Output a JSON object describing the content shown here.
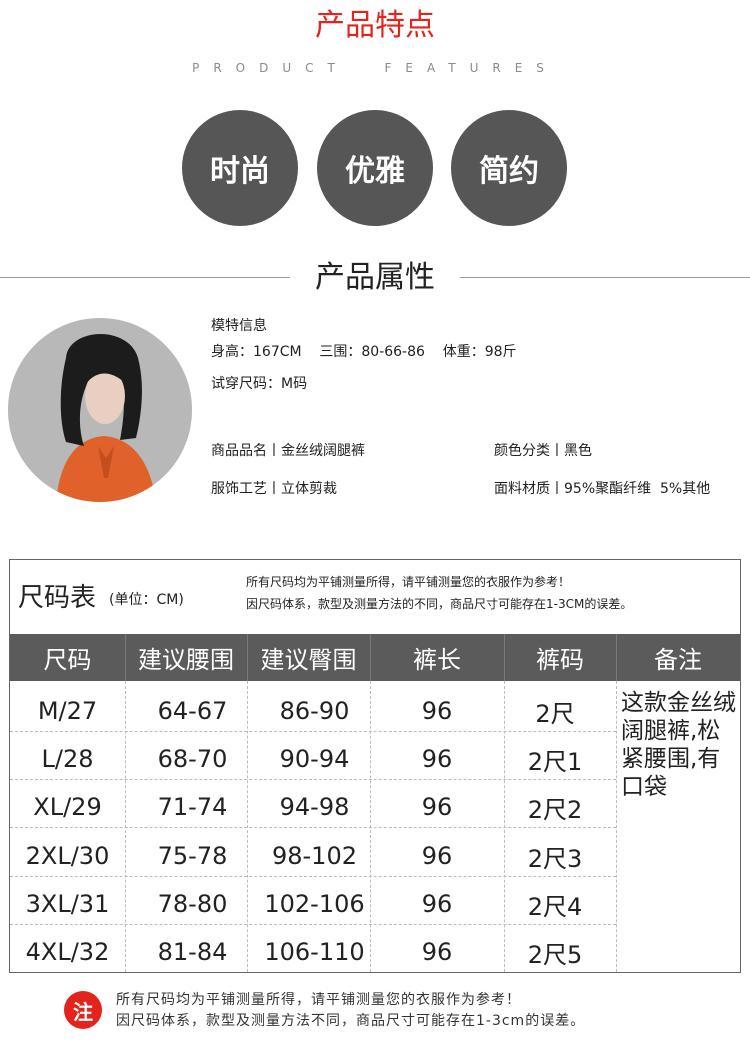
{
  "features": {
    "title": "产品特点",
    "subtitle": "PRODUCT  FEATURES",
    "items": [
      "时尚",
      "优雅",
      "简约"
    ]
  },
  "attributes": {
    "title": "产品属性",
    "model_info_label": "模特信息",
    "model_stats": "身高：167CM    三围：80-66-86    体重：98斤",
    "trial_size": "试穿尺码：M码",
    "product_name": "商品品名丨金丝绒阔腿裤",
    "color": "颜色分类丨黑色",
    "craft": "服饰工艺丨立体剪裁",
    "material": "面料材质丨95%聚酯纤维  5%其他"
  },
  "size_table": {
    "title": "尺码表",
    "unit": "(单位：CM)",
    "notes": [
      "所有尺码均为平铺测量所得，请平铺测量您的衣服作为参考！",
      "因尺码体系，款型及测量方法的不同，商品尺寸可能存在1-3CM的误差。"
    ],
    "headers": [
      "尺码",
      "建议腰围",
      "建议臀围",
      "裤长",
      "裤码",
      "备注"
    ],
    "rows": [
      [
        "M/27",
        "64-67",
        "86-90",
        "96",
        "2尺"
      ],
      [
        "L/28",
        "68-70",
        "90-94",
        "96",
        "2尺1"
      ],
      [
        "XL/29",
        "71-74",
        "94-98",
        "96",
        "2尺2"
      ],
      [
        "2XL/30",
        "75-78",
        "98-102",
        "96",
        "2尺3"
      ],
      [
        "3XL/31",
        "78-80",
        "102-106",
        "96",
        "2尺4"
      ],
      [
        "4XL/32",
        "81-84",
        "106-110",
        "96",
        "2尺5"
      ]
    ],
    "remark": "这款金丝绒阔腿裤,松紧腰围,有口袋"
  },
  "bottom_note": {
    "badge": "注",
    "lines": [
      "所有尺码均为平铺测量所得，请平铺测量您的衣服作为参考！",
      "因尺码体系，款型及测量方法不同，商品尺寸可能存在1-3cm的误差。"
    ]
  },
  "colors": {
    "accent_red": "#e3241c",
    "circle_gray": "#565656",
    "header_gray": "#5b5b5b"
  }
}
